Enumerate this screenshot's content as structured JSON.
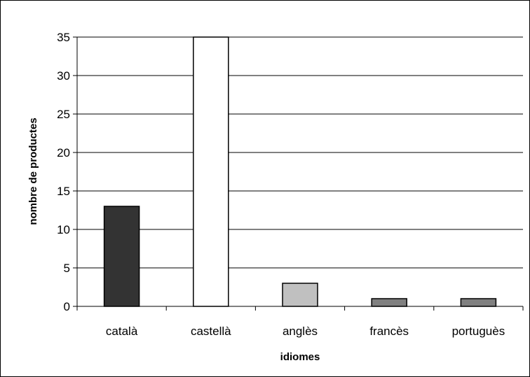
{
  "chart_data": {
    "type": "bar",
    "categories": [
      "català",
      "castellà",
      "anglès",
      "francès",
      "portuguès"
    ],
    "values": [
      13,
      35,
      3,
      1,
      1
    ],
    "bar_colors": [
      "#333333",
      "#ffffff",
      "#c0c0c0",
      "#808080",
      "#808080"
    ],
    "xlabel": "idiomes",
    "ylabel": "nombre de productes",
    "ylim": [
      0,
      35
    ],
    "y_ticks": [
      0,
      5,
      10,
      15,
      20,
      25,
      30,
      35
    ],
    "grid": true,
    "legend": "none"
  }
}
